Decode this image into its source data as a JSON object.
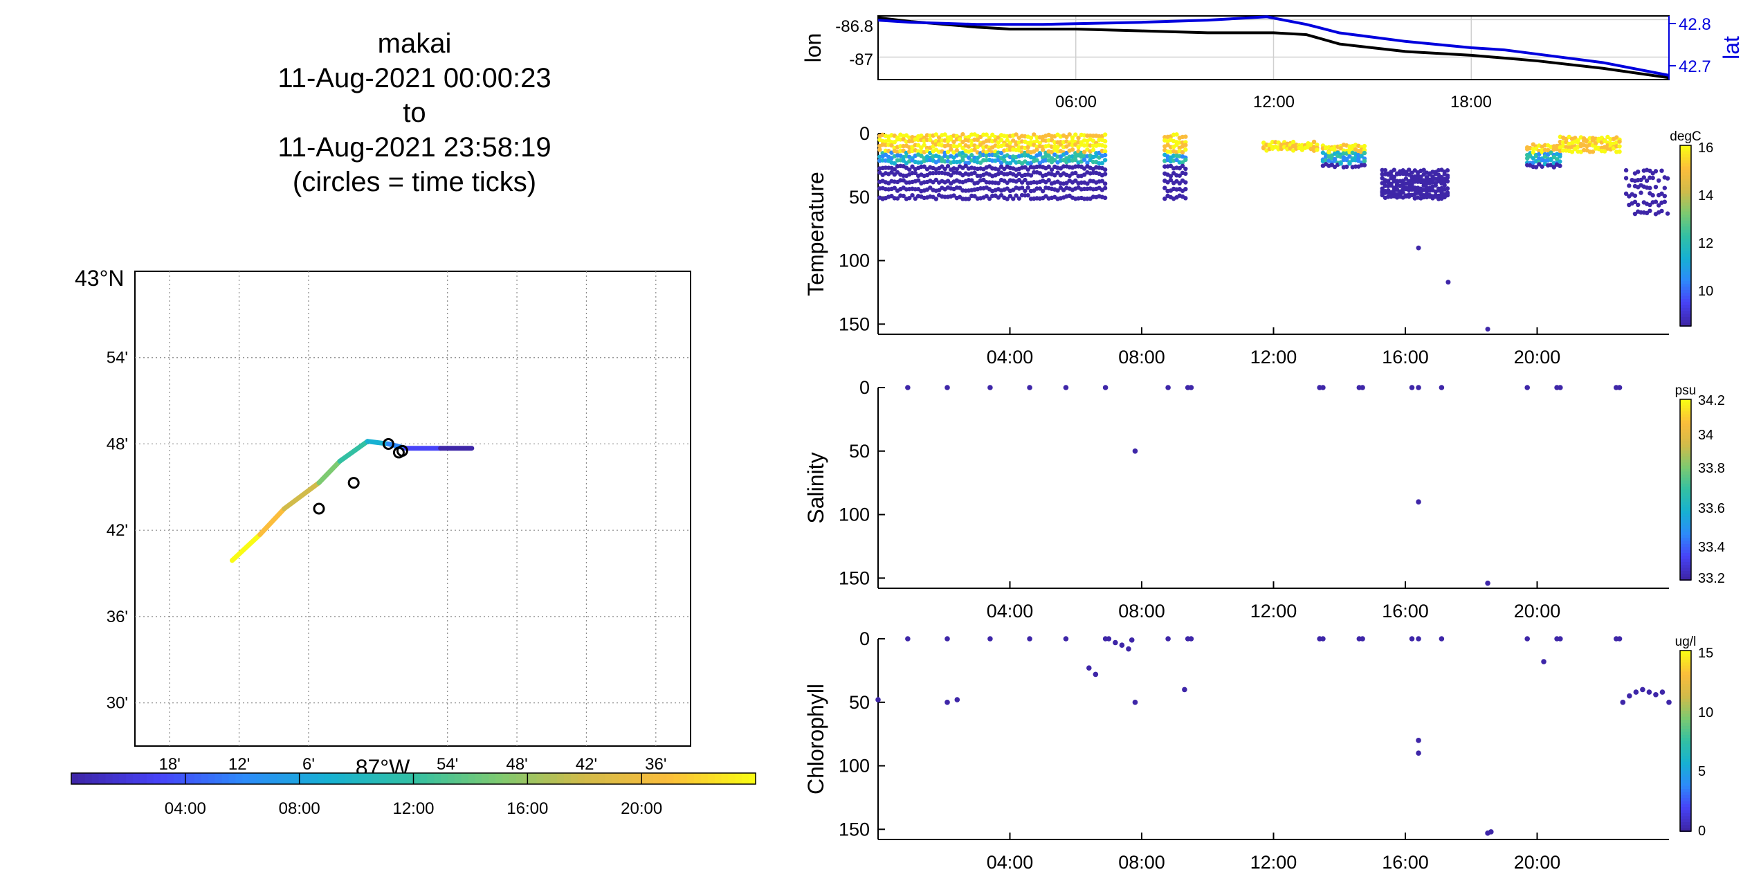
{
  "title_lines": [
    "makai",
    "11-Aug-2021 00:00:23",
    "to",
    "11-Aug-2021 23:58:19",
    "(circles = time ticks)"
  ],
  "colors": {
    "blue": "#0000dd",
    "black": "#000000",
    "grid": "#d9d9d9",
    "parula": [
      "#3e26a8",
      "#4743f8",
      "#2d8bfa",
      "#17b1d2",
      "#33c0a3",
      "#7dca71",
      "#d1bb4a",
      "#fbbd3c",
      "#f9fb15"
    ]
  },
  "map": {
    "lat_label": "43°N",
    "lon_label": "87°W",
    "lat_ticks": [
      "54'",
      "48'",
      "42'",
      "36'",
      "30'"
    ],
    "lon_ticks": [
      "18'",
      "12'",
      "6'",
      "54'",
      "48'",
      "42'",
      "36'"
    ],
    "colorbar_ticks": [
      "04:00",
      "08:00",
      "12:00",
      "16:00",
      "20:00"
    ]
  },
  "lonlat": {
    "ylabel_left": "lon",
    "ylabel_right": "lat",
    "left_ticks": [
      "-86.8",
      "-87"
    ],
    "right_ticks": [
      "42.8",
      "42.7"
    ],
    "x_ticks": [
      "06:00",
      "12:00",
      "18:00"
    ]
  },
  "panels": [
    {
      "ylabel": "Temperature",
      "unit": "degC",
      "cbar_ticks": [
        "16",
        "14",
        "12",
        "10"
      ]
    },
    {
      "ylabel": "Salinity",
      "unit": "psu",
      "cbar_ticks": [
        "34.2",
        "34",
        "33.8",
        "33.6",
        "33.4",
        "33.2"
      ]
    },
    {
      "ylabel": "Chlorophyll",
      "unit": "ug/l",
      "cbar_ticks": [
        "15",
        "10",
        "5",
        "0"
      ]
    }
  ],
  "depth_ticks": [
    "0",
    "50",
    "100",
    "150"
  ],
  "time_ticks": [
    "04:00",
    "08:00",
    "12:00",
    "16:00",
    "20:00"
  ],
  "chart_data": [
    {
      "type": "line",
      "name": "map track",
      "lon_min": -87.35,
      "lon_max": -86.55,
      "lat_min": 42.45,
      "lat_max": 43.0,
      "track": [
        [
          -87.21,
          42.665
        ],
        [
          -87.17,
          42.695
        ],
        [
          -87.135,
          42.725
        ],
        [
          -87.085,
          42.755
        ],
        [
          -87.055,
          42.78
        ],
        [
          -87.015,
          42.803
        ],
        [
          -86.985,
          42.8
        ],
        [
          -86.96,
          42.795
        ],
        [
          -86.91,
          42.795
        ],
        [
          -86.865,
          42.795
        ]
      ],
      "time_ticks": [
        [
          -87.085,
          42.725
        ],
        [
          -87.035,
          42.755
        ],
        [
          -86.985,
          42.8
        ],
        [
          -86.97,
          42.79
        ],
        [
          -86.965,
          42.792
        ]
      ]
    },
    {
      "type": "line",
      "name": "lon/lat time series",
      "x_range_hours": [
        0,
        24
      ],
      "lon_ylim": [
        -87.12,
        -86.78
      ],
      "lat_ylim": [
        42.67,
        42.82
      ],
      "lon": [
        [
          0,
          -86.79
        ],
        [
          1,
          -86.81
        ],
        [
          3,
          -86.84
        ],
        [
          4,
          -86.85
        ],
        [
          6,
          -86.85
        ],
        [
          8,
          -86.86
        ],
        [
          10,
          -86.87
        ],
        [
          12,
          -86.87
        ],
        [
          13,
          -86.88
        ],
        [
          14,
          -86.93
        ],
        [
          15,
          -86.95
        ],
        [
          16,
          -86.97
        ],
        [
          18,
          -86.99
        ],
        [
          20,
          -87.02
        ],
        [
          22,
          -87.06
        ],
        [
          24,
          -87.11
        ]
      ],
      "lat": [
        [
          0,
          42.81
        ],
        [
          1,
          42.805
        ],
        [
          3,
          42.8
        ],
        [
          5,
          42.8
        ],
        [
          8,
          42.805
        ],
        [
          10,
          42.81
        ],
        [
          11.8,
          42.818
        ],
        [
          13,
          42.8
        ],
        [
          14,
          42.78
        ],
        [
          15,
          42.77
        ],
        [
          16,
          42.76
        ],
        [
          18,
          42.745
        ],
        [
          19,
          42.74
        ],
        [
          20,
          42.73
        ],
        [
          22,
          42.71
        ],
        [
          24,
          42.68
        ]
      ]
    },
    {
      "type": "scatter",
      "name": "Temperature",
      "ylim": [
        0,
        158
      ],
      "clim": [
        9,
        16
      ],
      "segments": [
        [
          0.05,
          6.9
        ],
        [
          8.7,
          9.4
        ],
        [
          11.7,
          13.4
        ],
        [
          13.5,
          14.8
        ],
        [
          15.3,
          17.3
        ],
        [
          19.7,
          20.7
        ],
        [
          20.7,
          22.5
        ],
        [
          22.7,
          24
        ]
      ],
      "outliers": [
        [
          16.4,
          90
        ],
        [
          17.3,
          117
        ],
        [
          18.5,
          154
        ]
      ]
    },
    {
      "type": "scatter",
      "name": "Salinity",
      "ylim": [
        0,
        158
      ],
      "clim": [
        33.2,
        34.2
      ],
      "points": [
        [
          0.9,
          0
        ],
        [
          2.1,
          0
        ],
        [
          3.4,
          0
        ],
        [
          4.6,
          0
        ],
        [
          5.7,
          0
        ],
        [
          6.9,
          0
        ],
        [
          7.8,
          50
        ],
        [
          8.8,
          0
        ],
        [
          9.4,
          0
        ],
        [
          9.5,
          0
        ],
        [
          13.4,
          0
        ],
        [
          13.5,
          0
        ],
        [
          14.6,
          0
        ],
        [
          14.7,
          0
        ],
        [
          16.2,
          0
        ],
        [
          16.4,
          0
        ],
        [
          16.4,
          90
        ],
        [
          17.1,
          0
        ],
        [
          18.5,
          154
        ],
        [
          19.7,
          0
        ],
        [
          20.6,
          0
        ],
        [
          20.7,
          0
        ],
        [
          22.4,
          0
        ],
        [
          22.5,
          0
        ]
      ]
    },
    {
      "type": "scatter",
      "name": "Chlorophyll",
      "ylim": [
        0,
        158
      ],
      "clim": [
        0,
        15
      ],
      "points": [
        [
          0,
          48
        ],
        [
          0.9,
          0
        ],
        [
          2.1,
          0
        ],
        [
          2.1,
          50
        ],
        [
          2.4,
          48
        ],
        [
          3.4,
          0
        ],
        [
          4.6,
          0
        ],
        [
          5.7,
          0
        ],
        [
          6.4,
          23
        ],
        [
          6.6,
          28
        ],
        [
          6.9,
          0
        ],
        [
          7.0,
          0
        ],
        [
          7.2,
          3
        ],
        [
          7.4,
          5
        ],
        [
          7.6,
          8
        ],
        [
          7.8,
          50
        ],
        [
          7.7,
          1
        ],
        [
          8.8,
          0
        ],
        [
          9.3,
          40
        ],
        [
          9.4,
          0
        ],
        [
          9.5,
          0
        ],
        [
          13.4,
          0
        ],
        [
          13.5,
          0
        ],
        [
          14.6,
          0
        ],
        [
          14.7,
          0
        ],
        [
          16.2,
          0
        ],
        [
          16.4,
          0
        ],
        [
          16.4,
          80
        ],
        [
          16.4,
          90
        ],
        [
          17.1,
          0
        ],
        [
          18.5,
          153
        ],
        [
          18.6,
          152
        ],
        [
          19.7,
          0
        ],
        [
          20.2,
          18
        ],
        [
          20.6,
          0
        ],
        [
          20.7,
          0
        ],
        [
          22.4,
          0
        ],
        [
          22.5,
          0
        ],
        [
          22.6,
          50
        ],
        [
          22.8,
          45
        ],
        [
          23.0,
          42
        ],
        [
          23.2,
          40
        ],
        [
          23.4,
          42
        ],
        [
          23.6,
          44
        ],
        [
          23.8,
          42
        ],
        [
          24,
          50
        ]
      ]
    }
  ]
}
